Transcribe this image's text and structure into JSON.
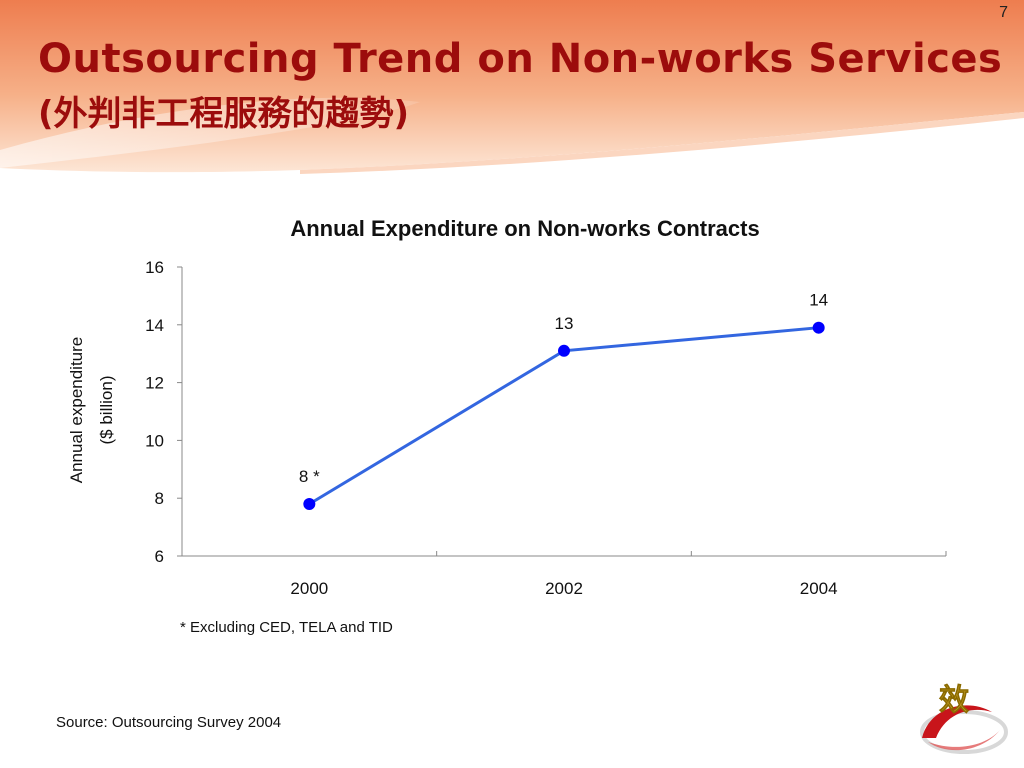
{
  "slide": {
    "page_number": "7",
    "title_line1": "Outsourcing Trend on Non-works Services",
    "title_line2": "(外判非工程服務的趨勢)",
    "logo_char": "效",
    "banner_color": "#ee8a55",
    "title_color": "#9c0c0c"
  },
  "chart_data": {
    "type": "line",
    "title": "Annual Expenditure on Non-works Contracts",
    "ylabel_lines": [
      "Annual expenditure",
      "($ billion)"
    ],
    "xlabel": "",
    "categories": [
      "2000",
      "2002",
      "2004"
    ],
    "values": [
      7.8,
      13.1,
      13.9
    ],
    "data_labels": [
      "8 *",
      "13",
      "14"
    ],
    "ylim": [
      6,
      16
    ],
    "yticks": [
      6,
      8,
      10,
      12,
      14,
      16
    ],
    "line_color": "#3366e0",
    "marker_color": "#0000ff",
    "grid": false,
    "legend": "none"
  },
  "notes": {
    "footnote": "* Excluding CED, TELA and TID",
    "source": "Source: Outsourcing Survey 2004"
  }
}
